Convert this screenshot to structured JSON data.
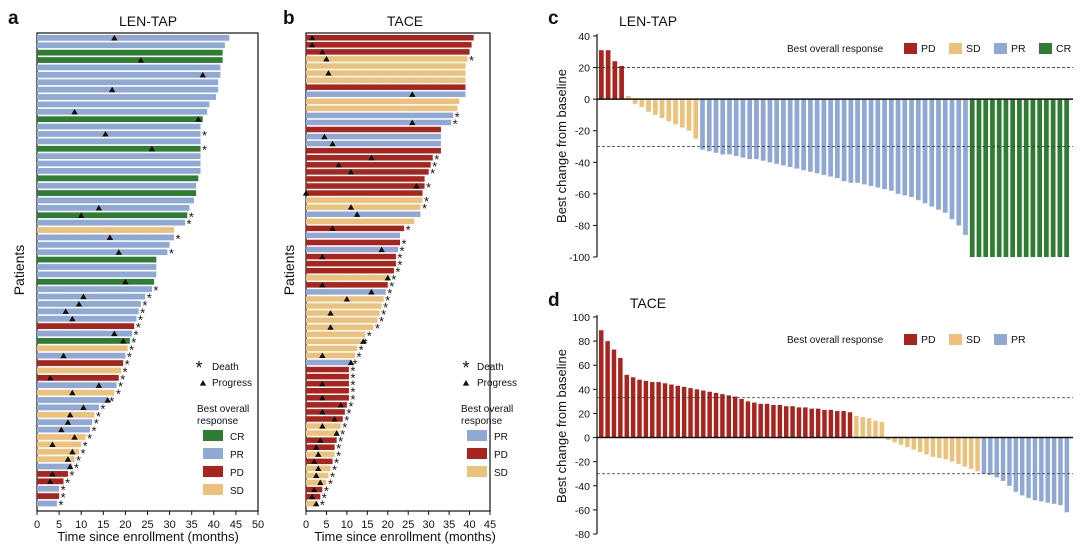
{
  "panels": {
    "a": {
      "letter": "a",
      "title": "LEN-TAP"
    },
    "b": {
      "letter": "b",
      "title": "TACE"
    },
    "c": {
      "letter": "c",
      "title": "LEN-TAP"
    },
    "d": {
      "letter": "d",
      "title": "TACE"
    }
  },
  "swimmer_common": {
    "ylabel": "Patients",
    "xlabel": "Time since enrollment (months)",
    "death_label": "Death",
    "progress_label": "Progress",
    "best_label_1": "Best overall",
    "best_label_2": "response",
    "death_glyph": "*"
  },
  "waterfall_common": {
    "ylabel": "Best change from baseline",
    "legend_title": "Best overall response"
  },
  "colors": {
    "CR": "#2e7d32",
    "PR": "#8fa8d6",
    "PD": "#a8241d",
    "SD": "#ecc17c"
  },
  "chart_data": [
    {
      "panel": "a",
      "type": "swimmer",
      "title": "LEN-TAP",
      "xlabel": "Time since enrollment (months)",
      "ylabel": "Patients",
      "xlim": [
        0,
        50
      ],
      "xticks": [
        "0",
        "5",
        "10",
        "15",
        "20",
        "25",
        "30",
        "35",
        "40",
        "45",
        "50"
      ],
      "legend": [
        "CR",
        "PR",
        "PD",
        "SD"
      ],
      "bars": [
        {
          "v": 43.5,
          "r": "PR",
          "p": 17.5,
          "d": false
        },
        {
          "v": 42.5,
          "r": "PR",
          "p": null,
          "d": false
        },
        {
          "v": 42,
          "r": "CR",
          "p": null,
          "d": false
        },
        {
          "v": 42,
          "r": "CR",
          "p": 23.5,
          "d": false
        },
        {
          "v": 41.5,
          "r": "PR",
          "p": null,
          "d": false
        },
        {
          "v": 41.5,
          "r": "PR",
          "p": 37.5,
          "d": false
        },
        {
          "v": 41,
          "r": "PR",
          "p": null,
          "d": false
        },
        {
          "v": 41,
          "r": "PR",
          "p": 17,
          "d": false
        },
        {
          "v": 40.5,
          "r": "PR",
          "p": null,
          "d": false
        },
        {
          "v": 39,
          "r": "PR",
          "p": null,
          "d": false
        },
        {
          "v": 38.5,
          "r": "PR",
          "p": 8.5,
          "d": false
        },
        {
          "v": 37.5,
          "r": "CR",
          "p": 36.5,
          "d": false
        },
        {
          "v": 37,
          "r": "PR",
          "p": null,
          "d": false
        },
        {
          "v": 37,
          "r": "PR",
          "p": 15.5,
          "d": true
        },
        {
          "v": 37,
          "r": "PR",
          "p": null,
          "d": false
        },
        {
          "v": 37,
          "r": "CR",
          "p": 26,
          "d": true
        },
        {
          "v": 37,
          "r": "PR",
          "p": null,
          "d": false
        },
        {
          "v": 37,
          "r": "PR",
          "p": null,
          "d": false
        },
        {
          "v": 37,
          "r": "PR",
          "p": null,
          "d": false
        },
        {
          "v": 36.5,
          "r": "CR",
          "p": null,
          "d": false
        },
        {
          "v": 36,
          "r": "PR",
          "p": null,
          "d": false
        },
        {
          "v": 36,
          "r": "CR",
          "p": null,
          "d": false
        },
        {
          "v": 35.5,
          "r": "PR",
          "p": null,
          "d": false
        },
        {
          "v": 34.5,
          "r": "PR",
          "p": 14,
          "d": false
        },
        {
          "v": 34,
          "r": "CR",
          "p": 10,
          "d": true
        },
        {
          "v": 33.5,
          "r": "PR",
          "p": null,
          "d": true
        },
        {
          "v": 31,
          "r": "SD",
          "p": null,
          "d": false
        },
        {
          "v": 31,
          "r": "PR",
          "p": 16.5,
          "d": true
        },
        {
          "v": 30,
          "r": "PR",
          "p": null,
          "d": false
        },
        {
          "v": 29.5,
          "r": "PR",
          "p": 18.5,
          "d": true
        },
        {
          "v": 27,
          "r": "CR",
          "p": null,
          "d": false
        },
        {
          "v": 27,
          "r": "PR",
          "p": null,
          "d": false
        },
        {
          "v": 27,
          "r": "PR",
          "p": null,
          "d": false
        },
        {
          "v": 26.5,
          "r": "CR",
          "p": 20,
          "d": false
        },
        {
          "v": 26,
          "r": "PR",
          "p": null,
          "d": true
        },
        {
          "v": 24.5,
          "r": "PR",
          "p": 10.5,
          "d": true
        },
        {
          "v": 23.5,
          "r": "PR",
          "p": 9.5,
          "d": true
        },
        {
          "v": 23,
          "r": "PR",
          "p": 6.5,
          "d": true
        },
        {
          "v": 22.5,
          "r": "PR",
          "p": 8,
          "d": true
        },
        {
          "v": 22,
          "r": "PD",
          "p": null,
          "d": true
        },
        {
          "v": 21.5,
          "r": "PR",
          "p": 17.5,
          "d": true
        },
        {
          "v": 21,
          "r": "CR",
          "p": 19.5,
          "d": true
        },
        {
          "v": 20.5,
          "r": "SD",
          "p": null,
          "d": true
        },
        {
          "v": 20,
          "r": "PR",
          "p": 6,
          "d": true
        },
        {
          "v": 19.5,
          "r": "PD",
          "p": null,
          "d": true
        },
        {
          "v": 19,
          "r": "SD",
          "p": null,
          "d": true
        },
        {
          "v": 18.5,
          "r": "PD",
          "p": 3,
          "d": true
        },
        {
          "v": 18,
          "r": "PR",
          "p": 14,
          "d": true
        },
        {
          "v": 17.5,
          "r": "SD",
          "p": 8,
          "d": true
        },
        {
          "v": 16,
          "r": "PR",
          "p": 16,
          "d": true
        },
        {
          "v": 14,
          "r": "PR",
          "p": 10.5,
          "d": true
        },
        {
          "v": 13,
          "r": "SD",
          "p": 7.5,
          "d": true
        },
        {
          "v": 12.5,
          "r": "PR",
          "p": 7,
          "d": true
        },
        {
          "v": 12,
          "r": "PR",
          "p": 5.5,
          "d": true
        },
        {
          "v": 11,
          "r": "SD",
          "p": 8.5,
          "d": true
        },
        {
          "v": 10,
          "r": "SD",
          "p": 3.5,
          "d": true
        },
        {
          "v": 9.5,
          "r": "SD",
          "p": 8,
          "d": true
        },
        {
          "v": 8.5,
          "r": "SD",
          "p": 7,
          "d": true
        },
        {
          "v": 8,
          "r": "PR",
          "p": 7.5,
          "d": true
        },
        {
          "v": 7,
          "r": "PD",
          "p": 3.5,
          "d": true
        },
        {
          "v": 6,
          "r": "PD",
          "p": 3,
          "d": true
        },
        {
          "v": 5,
          "r": "PR",
          "p": null,
          "d": true
        },
        {
          "v": 5,
          "r": "PD",
          "p": null,
          "d": true
        },
        {
          "v": 4.5,
          "r": "PR",
          "p": null,
          "d": true
        }
      ]
    },
    {
      "panel": "b",
      "type": "swimmer",
      "title": "TACE",
      "xlabel": "Time since enrollment (months)",
      "ylabel": "Patients",
      "xlim": [
        0,
        45
      ],
      "xticks": [
        "0",
        "5",
        "10",
        "15",
        "20",
        "25",
        "30",
        "35",
        "40",
        "45"
      ],
      "legend": [
        "PR",
        "PD",
        "SD"
      ],
      "bars": [
        {
          "v": 41,
          "r": "PD",
          "p": 1.5,
          "d": false
        },
        {
          "v": 40.5,
          "r": "PD",
          "p": 1.5,
          "d": false
        },
        {
          "v": 40,
          "r": "PD",
          "p": 4,
          "d": false
        },
        {
          "v": 39.5,
          "r": "SD",
          "p": 5,
          "d": true
        },
        {
          "v": 39,
          "r": "SD",
          "p": null,
          "d": false
        },
        {
          "v": 39,
          "r": "SD",
          "p": 5.5,
          "d": false
        },
        {
          "v": 39,
          "r": "SD",
          "p": null,
          "d": false
        },
        {
          "v": 39,
          "r": "PD",
          "p": null,
          "d": false
        },
        {
          "v": 39,
          "r": "PR",
          "p": 26,
          "d": false
        },
        {
          "v": 37.5,
          "r": "SD",
          "p": null,
          "d": false
        },
        {
          "v": 37,
          "r": "SD",
          "p": null,
          "d": false
        },
        {
          "v": 36,
          "r": "PR",
          "p": null,
          "d": true
        },
        {
          "v": 35.5,
          "r": "PR",
          "p": 26,
          "d": true
        },
        {
          "v": 33,
          "r": "PD",
          "p": null,
          "d": false
        },
        {
          "v": 33,
          "r": "PR",
          "p": 4.5,
          "d": false
        },
        {
          "v": 33,
          "r": "PR",
          "p": 6.5,
          "d": false
        },
        {
          "v": 33,
          "r": "PD",
          "p": null,
          "d": false
        },
        {
          "v": 31,
          "r": "PD",
          "p": 16,
          "d": true
        },
        {
          "v": 30.5,
          "r": "PD",
          "p": 8,
          "d": true
        },
        {
          "v": 30,
          "r": "PD",
          "p": 11,
          "d": true
        },
        {
          "v": 29,
          "r": "PD",
          "p": null,
          "d": false
        },
        {
          "v": 29,
          "r": "PD",
          "p": 27,
          "d": true
        },
        {
          "v": 28.5,
          "r": "PD",
          "p": 0,
          "d": false
        },
        {
          "v": 28.5,
          "r": "SD",
          "p": null,
          "d": true
        },
        {
          "v": 28,
          "r": "SD",
          "p": 11,
          "d": true
        },
        {
          "v": 28,
          "r": "PR",
          "p": 12.5,
          "d": false
        },
        {
          "v": 26.5,
          "r": "SD",
          "p": null,
          "d": false
        },
        {
          "v": 24,
          "r": "PD",
          "p": 6.5,
          "d": true
        },
        {
          "v": 23,
          "r": "PR",
          "p": null,
          "d": false
        },
        {
          "v": 23,
          "r": "PD",
          "p": null,
          "d": true
        },
        {
          "v": 22.5,
          "r": "PR",
          "p": 18.5,
          "d": true
        },
        {
          "v": 22,
          "r": "PD",
          "p": 4,
          "d": true
        },
        {
          "v": 22,
          "r": "PD",
          "p": null,
          "d": true
        },
        {
          "v": 21.5,
          "r": "PD",
          "p": null,
          "d": true
        },
        {
          "v": 20.5,
          "r": "SD",
          "p": 20,
          "d": true
        },
        {
          "v": 20,
          "r": "PD",
          "p": 4,
          "d": true
        },
        {
          "v": 19.5,
          "r": "PR",
          "p": 16,
          "d": true
        },
        {
          "v": 19,
          "r": "SD",
          "p": 10,
          "d": true
        },
        {
          "v": 18.5,
          "r": "SD",
          "p": null,
          "d": true
        },
        {
          "v": 18,
          "r": "SD",
          "p": 6,
          "d": true
        },
        {
          "v": 17.5,
          "r": "SD",
          "p": null,
          "d": true
        },
        {
          "v": 16.5,
          "r": "SD",
          "p": 6,
          "d": true
        },
        {
          "v": 14.5,
          "r": "SD",
          "p": null,
          "d": true
        },
        {
          "v": 13.5,
          "r": "SD",
          "p": 14,
          "d": true
        },
        {
          "v": 12.5,
          "r": "SD",
          "p": null,
          "d": true
        },
        {
          "v": 12,
          "r": "SD",
          "p": 4,
          "d": true
        },
        {
          "v": 11,
          "r": "PR",
          "p": 11,
          "d": true
        },
        {
          "v": 10.5,
          "r": "PD",
          "p": null,
          "d": true
        },
        {
          "v": 10.5,
          "r": "PD",
          "p": null,
          "d": true
        },
        {
          "v": 10.5,
          "r": "PD",
          "p": 4,
          "d": true
        },
        {
          "v": 10.5,
          "r": "PD",
          "p": null,
          "d": true
        },
        {
          "v": 10.5,
          "r": "PD",
          "p": 4,
          "d": true
        },
        {
          "v": 10,
          "r": "PD",
          "p": 8.5,
          "d": true
        },
        {
          "v": 9.5,
          "r": "PD",
          "p": 4,
          "d": true
        },
        {
          "v": 9,
          "r": "PD",
          "p": 7,
          "d": true
        },
        {
          "v": 8.5,
          "r": "SD",
          "p": 4,
          "d": true
        },
        {
          "v": 8,
          "r": "SD",
          "p": 7.5,
          "d": true
        },
        {
          "v": 7.5,
          "r": "PD",
          "p": 3.5,
          "d": true
        },
        {
          "v": 7,
          "r": "PD",
          "p": 2.5,
          "d": true
        },
        {
          "v": 7,
          "r": "SD",
          "p": 3,
          "d": true
        },
        {
          "v": 6.5,
          "r": "PD",
          "p": 2,
          "d": true
        },
        {
          "v": 6,
          "r": "SD",
          "p": 3,
          "d": true
        },
        {
          "v": 5.5,
          "r": "SD",
          "p": 2.5,
          "d": true
        },
        {
          "v": 5,
          "r": "SD",
          "p": 3.5,
          "d": true
        },
        {
          "v": 4,
          "r": "PD",
          "p": 2,
          "d": true
        },
        {
          "v": 3.5,
          "r": "PD",
          "p": 1.5,
          "d": true
        },
        {
          "v": 3,
          "r": "SD",
          "p": 2.5,
          "d": true
        }
      ]
    },
    {
      "panel": "c",
      "type": "bar",
      "title": "LEN-TAP",
      "ylabel": "Best change from baseline",
      "ylim": [
        -100,
        40
      ],
      "yticks": [
        "40",
        "20",
        "0",
        "-20",
        "-40",
        "-60",
        "-80",
        "-100"
      ],
      "reference_lines": [
        20,
        -30
      ],
      "legend": [
        "PD",
        "SD",
        "PR",
        "CR"
      ],
      "values": [
        31,
        31,
        24,
        21,
        2,
        -3,
        -5,
        -8,
        -10,
        -12,
        -14,
        -16,
        -18,
        -20,
        -25,
        -32,
        -33,
        -34,
        -35,
        -35,
        -36,
        -37,
        -38,
        -38,
        -39,
        -40,
        -41,
        -42,
        -43,
        -44,
        -45,
        -46,
        -47,
        -48,
        -49,
        -50,
        -52,
        -53,
        -53,
        -54,
        -55,
        -56,
        -57,
        -58,
        -60,
        -61,
        -62,
        -64,
        -66,
        -68,
        -70,
        -72,
        -76,
        -80,
        -86,
        -100,
        -100,
        -100,
        -100,
        -100,
        -100,
        -100,
        -100,
        -100,
        -100,
        -100,
        -100,
        -100,
        -100,
        -100
      ],
      "responses": [
        "PD",
        "PD",
        "PD",
        "PD",
        "SD",
        "SD",
        "SD",
        "SD",
        "SD",
        "SD",
        "SD",
        "SD",
        "SD",
        "SD",
        "SD",
        "PR",
        "PR",
        "PR",
        "PR",
        "PR",
        "PR",
        "PR",
        "PR",
        "PR",
        "PR",
        "PR",
        "PR",
        "PR",
        "PR",
        "PR",
        "PR",
        "PR",
        "PR",
        "PR",
        "PR",
        "PR",
        "PR",
        "PR",
        "PR",
        "PR",
        "PR",
        "PR",
        "PR",
        "PR",
        "PR",
        "PR",
        "PR",
        "PR",
        "PR",
        "PR",
        "PR",
        "PR",
        "PR",
        "PR",
        "PR",
        "CR",
        "CR",
        "CR",
        "CR",
        "CR",
        "CR",
        "CR",
        "CR",
        "CR",
        "CR",
        "CR",
        "CR",
        "CR",
        "CR",
        "CR"
      ]
    },
    {
      "panel": "d",
      "type": "bar",
      "title": "TACE",
      "ylabel": "Best change from baseline",
      "ylim": [
        -80,
        100
      ],
      "yticks": [
        "100",
        "80",
        "60",
        "40",
        "20",
        "0",
        "-20",
        "-40",
        "-60",
        "-80"
      ],
      "reference_lines": [
        33,
        -30
      ],
      "legend": [
        "PD",
        "SD",
        "PR"
      ],
      "values": [
        89,
        80,
        73,
        66,
        52,
        50,
        48,
        47,
        46,
        46,
        45,
        44,
        43,
        42,
        41,
        40,
        39,
        38,
        37,
        36,
        35,
        34,
        32,
        30,
        29,
        28,
        28,
        27,
        27,
        26,
        26,
        25,
        25,
        24,
        24,
        23,
        23,
        22,
        22,
        21,
        18,
        17,
        16,
        14,
        13,
        -2,
        -4,
        -6,
        -8,
        -10,
        -12,
        -14,
        -16,
        -17,
        -18,
        -20,
        -22,
        -24,
        -26,
        -28,
        -30,
        -31,
        -33,
        -36,
        -40,
        -45,
        -48,
        -50,
        -52,
        -53,
        -54,
        -55,
        -56,
        -62
      ],
      "responses": [
        "PD",
        "PD",
        "PD",
        "PD",
        "PD",
        "PD",
        "PD",
        "PD",
        "PD",
        "PD",
        "PD",
        "PD",
        "PD",
        "PD",
        "PD",
        "PD",
        "PD",
        "PD",
        "PD",
        "PD",
        "PD",
        "PD",
        "PD",
        "PD",
        "PD",
        "PD",
        "PD",
        "PD",
        "PD",
        "PD",
        "PD",
        "PD",
        "PD",
        "PD",
        "PD",
        "PD",
        "PD",
        "PD",
        "PD",
        "PD",
        "SD",
        "SD",
        "SD",
        "SD",
        "SD",
        "SD",
        "SD",
        "SD",
        "SD",
        "SD",
        "SD",
        "SD",
        "SD",
        "SD",
        "SD",
        "SD",
        "SD",
        "SD",
        "SD",
        "SD",
        "PR",
        "PR",
        "PR",
        "PR",
        "PR",
        "PR",
        "PR",
        "PR",
        "PR",
        "PR",
        "PR",
        "PR",
        "PR",
        "PR"
      ]
    }
  ]
}
